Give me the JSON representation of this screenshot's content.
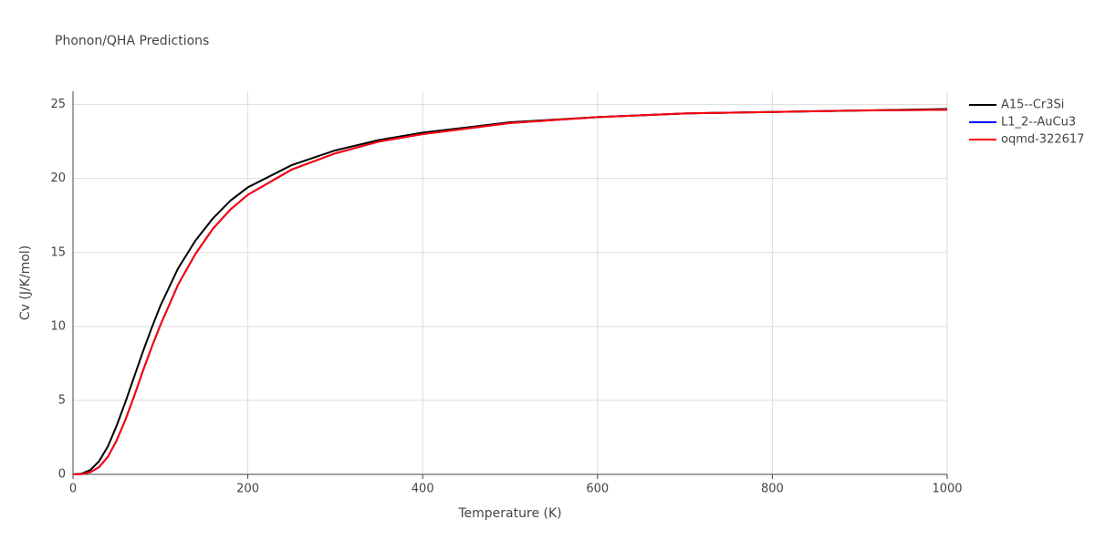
{
  "chart_data": {
    "type": "line",
    "title": "Phonon/QHA Predictions",
    "xlabel": "Temperature (K)",
    "ylabel": "Cv (J/K/mol)",
    "x": [
      0,
      10,
      20,
      30,
      40,
      50,
      60,
      70,
      80,
      90,
      100,
      120,
      140,
      160,
      180,
      200,
      250,
      300,
      350,
      400,
      500,
      600,
      700,
      800,
      900,
      1000
    ],
    "series": [
      {
        "name": "A15--Cr3Si",
        "color": "#000000",
        "values": [
          0,
          0.05,
          0.3,
          0.9,
          1.9,
          3.3,
          4.9,
          6.6,
          8.3,
          9.9,
          11.4,
          13.9,
          15.8,
          17.3,
          18.5,
          19.4,
          20.9,
          21.9,
          22.6,
          23.1,
          23.8,
          24.15,
          24.4,
          24.5,
          24.6,
          24.7
        ]
      },
      {
        "name": "L1_2--AuCu3",
        "color": "#0000ff",
        "values": [
          0,
          0.02,
          0.15,
          0.5,
          1.2,
          2.3,
          3.7,
          5.3,
          7.0,
          8.6,
          10.1,
          12.8,
          14.9,
          16.6,
          17.9,
          18.9,
          20.6,
          21.7,
          22.5,
          23.0,
          23.75,
          24.15,
          24.4,
          24.5,
          24.6,
          24.65
        ]
      },
      {
        "name": "oqmd-322617",
        "color": "#ff0000",
        "values": [
          0,
          0.02,
          0.15,
          0.5,
          1.2,
          2.3,
          3.7,
          5.3,
          7.0,
          8.6,
          10.1,
          12.8,
          14.9,
          16.6,
          17.9,
          18.9,
          20.6,
          21.7,
          22.5,
          23.0,
          23.75,
          24.15,
          24.4,
          24.5,
          24.6,
          24.65
        ]
      }
    ],
    "xlim": [
      0,
      1000
    ],
    "xticks": [
      0,
      200,
      400,
      600,
      800,
      1000
    ],
    "ylim": [
      0,
      25.9
    ],
    "yticks": [
      0,
      5,
      10,
      15,
      20,
      25
    ],
    "grid": true
  }
}
